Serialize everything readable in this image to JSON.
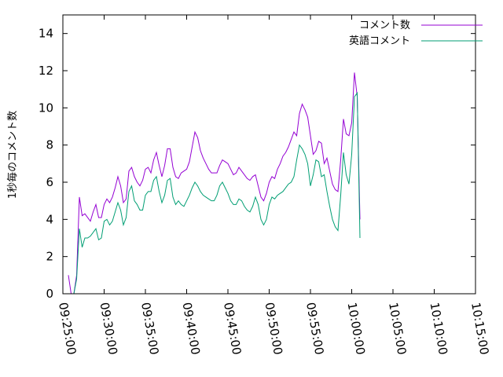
{
  "chart_data": {
    "type": "line",
    "title": "",
    "xlabel": "",
    "ylabel": "1秒毎のコメント数",
    "xlim": [
      "09:25:00",
      "10:15:00"
    ],
    "ylim": [
      0,
      15
    ],
    "grid": false,
    "legend_position": "top-right",
    "x_ticks": [
      "09:25:00",
      "09:30:00",
      "09:35:00",
      "09:40:00",
      "09:45:00",
      "09:50:00",
      "09:55:00",
      "10:00:00",
      "10:05:00",
      "10:10:00",
      "10:15:00"
    ],
    "y_ticks": [
      0,
      2,
      4,
      6,
      8,
      10,
      12,
      14
    ],
    "series": [
      {
        "name": "コメント数",
        "color": "#9400d3",
        "points": [
          [
            "09:25:40",
            1.0
          ],
          [
            "09:26:00",
            0.0
          ],
          [
            "09:26:20",
            0.0
          ],
          [
            "09:26:40",
            1.0
          ],
          [
            "09:27:00",
            5.2
          ],
          [
            "09:27:20",
            4.2
          ],
          [
            "09:27:40",
            4.3
          ],
          [
            "09:28:00",
            4.1
          ],
          [
            "09:28:20",
            3.9
          ],
          [
            "09:28:40",
            4.4
          ],
          [
            "09:29:00",
            4.8
          ],
          [
            "09:29:20",
            4.1
          ],
          [
            "09:29:40",
            4.1
          ],
          [
            "09:30:00",
            4.8
          ],
          [
            "09:30:20",
            5.1
          ],
          [
            "09:30:40",
            4.9
          ],
          [
            "09:31:00",
            5.2
          ],
          [
            "09:31:20",
            5.7
          ],
          [
            "09:31:40",
            6.3
          ],
          [
            "09:32:00",
            5.8
          ],
          [
            "09:32:20",
            4.9
          ],
          [
            "09:32:40",
            5.1
          ],
          [
            "09:33:00",
            6.6
          ],
          [
            "09:33:20",
            6.8
          ],
          [
            "09:33:40",
            6.3
          ],
          [
            "09:34:00",
            6.0
          ],
          [
            "09:34:20",
            5.8
          ],
          [
            "09:34:40",
            6.1
          ],
          [
            "09:35:00",
            6.7
          ],
          [
            "09:35:20",
            6.8
          ],
          [
            "09:35:40",
            6.5
          ],
          [
            "09:36:00",
            7.2
          ],
          [
            "09:36:20",
            7.6
          ],
          [
            "09:36:40",
            6.9
          ],
          [
            "09:37:00",
            6.3
          ],
          [
            "09:37:20",
            6.9
          ],
          [
            "09:37:40",
            7.8
          ],
          [
            "09:38:00",
            7.8
          ],
          [
            "09:38:20",
            6.8
          ],
          [
            "09:38:40",
            6.3
          ],
          [
            "09:39:00",
            6.2
          ],
          [
            "09:39:20",
            6.5
          ],
          [
            "09:39:40",
            6.6
          ],
          [
            "09:40:00",
            6.7
          ],
          [
            "09:40:20",
            7.1
          ],
          [
            "09:40:40",
            7.9
          ],
          [
            "09:41:00",
            8.7
          ],
          [
            "09:41:20",
            8.4
          ],
          [
            "09:41:40",
            7.7
          ],
          [
            "09:42:00",
            7.3
          ],
          [
            "09:42:20",
            7.0
          ],
          [
            "09:42:40",
            6.7
          ],
          [
            "09:43:00",
            6.5
          ],
          [
            "09:43:20",
            6.5
          ],
          [
            "09:43:40",
            6.5
          ],
          [
            "09:44:00",
            6.9
          ],
          [
            "09:44:20",
            7.2
          ],
          [
            "09:44:40",
            7.1
          ],
          [
            "09:45:00",
            7.0
          ],
          [
            "09:45:20",
            6.7
          ],
          [
            "09:45:40",
            6.4
          ],
          [
            "09:46:00",
            6.5
          ],
          [
            "09:46:20",
            6.8
          ],
          [
            "09:46:40",
            6.6
          ],
          [
            "09:47:00",
            6.4
          ],
          [
            "09:47:20",
            6.2
          ],
          [
            "09:47:40",
            6.1
          ],
          [
            "09:48:00",
            6.3
          ],
          [
            "09:48:20",
            6.4
          ],
          [
            "09:48:40",
            5.8
          ],
          [
            "09:49:00",
            5.2
          ],
          [
            "09:49:20",
            5.0
          ],
          [
            "09:49:40",
            5.4
          ],
          [
            "09:50:00",
            6.0
          ],
          [
            "09:50:20",
            6.3
          ],
          [
            "09:50:40",
            6.2
          ],
          [
            "09:51:00",
            6.7
          ],
          [
            "09:51:20",
            7.0
          ],
          [
            "09:51:40",
            7.4
          ],
          [
            "09:52:00",
            7.6
          ],
          [
            "09:52:20",
            7.9
          ],
          [
            "09:52:40",
            8.3
          ],
          [
            "09:53:00",
            8.7
          ],
          [
            "09:53:20",
            8.5
          ],
          [
            "09:53:40",
            9.7
          ],
          [
            "09:54:00",
            10.2
          ],
          [
            "09:54:20",
            9.9
          ],
          [
            "09:54:40",
            9.5
          ],
          [
            "09:55:00",
            8.5
          ],
          [
            "09:55:20",
            7.5
          ],
          [
            "09:55:40",
            7.7
          ],
          [
            "09:56:00",
            8.2
          ],
          [
            "09:56:20",
            8.1
          ],
          [
            "09:56:40",
            7.0
          ],
          [
            "09:57:00",
            7.3
          ],
          [
            "09:57:20",
            6.6
          ],
          [
            "09:57:40",
            5.9
          ],
          [
            "09:58:00",
            5.6
          ],
          [
            "09:58:20",
            5.5
          ],
          [
            "09:58:40",
            7.2
          ],
          [
            "09:59:00",
            9.4
          ],
          [
            "09:59:20",
            8.6
          ],
          [
            "09:59:40",
            8.5
          ],
          [
            "10:00:00",
            9.2
          ],
          [
            "10:00:20",
            11.9
          ],
          [
            "10:00:40",
            10.6
          ],
          [
            "10:01:00",
            4.0
          ]
        ]
      },
      {
        "name": "英語コメント",
        "color": "#009e73",
        "points": [
          [
            "09:25:40",
            0.0
          ],
          [
            "09:26:00",
            0.0
          ],
          [
            "09:26:20",
            0.0
          ],
          [
            "09:26:40",
            0.8
          ],
          [
            "09:27:00",
            3.5
          ],
          [
            "09:27:20",
            2.5
          ],
          [
            "09:27:40",
            3.0
          ],
          [
            "09:28:00",
            3.0
          ],
          [
            "09:28:20",
            3.1
          ],
          [
            "09:28:40",
            3.3
          ],
          [
            "09:29:00",
            3.5
          ],
          [
            "09:29:20",
            2.9
          ],
          [
            "09:29:40",
            3.0
          ],
          [
            "09:30:00",
            3.9
          ],
          [
            "09:30:20",
            4.0
          ],
          [
            "09:30:40",
            3.7
          ],
          [
            "09:31:00",
            3.9
          ],
          [
            "09:31:20",
            4.4
          ],
          [
            "09:31:40",
            4.9
          ],
          [
            "09:32:00",
            4.5
          ],
          [
            "09:32:20",
            3.7
          ],
          [
            "09:32:40",
            4.1
          ],
          [
            "09:33:00",
            5.5
          ],
          [
            "09:33:20",
            5.8
          ],
          [
            "09:33:40",
            5.0
          ],
          [
            "09:34:00",
            4.8
          ],
          [
            "09:34:20",
            4.5
          ],
          [
            "09:34:40",
            4.5
          ],
          [
            "09:35:00",
            5.3
          ],
          [
            "09:35:20",
            5.5
          ],
          [
            "09:35:40",
            5.5
          ],
          [
            "09:36:00",
            6.1
          ],
          [
            "09:36:20",
            6.3
          ],
          [
            "09:36:40",
            5.5
          ],
          [
            "09:37:00",
            4.9
          ],
          [
            "09:37:20",
            5.3
          ],
          [
            "09:37:40",
            6.1
          ],
          [
            "09:38:00",
            6.2
          ],
          [
            "09:38:20",
            5.2
          ],
          [
            "09:38:40",
            4.8
          ],
          [
            "09:39:00",
            5.0
          ],
          [
            "09:39:20",
            4.8
          ],
          [
            "09:39:40",
            4.7
          ],
          [
            "09:40:00",
            5.0
          ],
          [
            "09:40:20",
            5.3
          ],
          [
            "09:40:40",
            5.7
          ],
          [
            "09:41:00",
            6.0
          ],
          [
            "09:41:20",
            5.8
          ],
          [
            "09:41:40",
            5.5
          ],
          [
            "09:42:00",
            5.3
          ],
          [
            "09:42:20",
            5.2
          ],
          [
            "09:42:40",
            5.1
          ],
          [
            "09:43:00",
            5.0
          ],
          [
            "09:43:20",
            5.0
          ],
          [
            "09:43:40",
            5.3
          ],
          [
            "09:44:00",
            5.8
          ],
          [
            "09:44:20",
            6.0
          ],
          [
            "09:44:40",
            5.7
          ],
          [
            "09:45:00",
            5.4
          ],
          [
            "09:45:20",
            5.0
          ],
          [
            "09:45:40",
            4.8
          ],
          [
            "09:46:00",
            4.8
          ],
          [
            "09:46:20",
            5.1
          ],
          [
            "09:46:40",
            5.0
          ],
          [
            "09:47:00",
            4.7
          ],
          [
            "09:47:20",
            4.5
          ],
          [
            "09:47:40",
            4.4
          ],
          [
            "09:48:00",
            4.7
          ],
          [
            "09:48:20",
            5.2
          ],
          [
            "09:48:40",
            4.8
          ],
          [
            "09:49:00",
            4.0
          ],
          [
            "09:49:20",
            3.7
          ],
          [
            "09:49:40",
            4.0
          ],
          [
            "09:50:00",
            4.8
          ],
          [
            "09:50:20",
            5.2
          ],
          [
            "09:50:40",
            5.1
          ],
          [
            "09:51:00",
            5.3
          ],
          [
            "09:51:20",
            5.4
          ],
          [
            "09:51:40",
            5.5
          ],
          [
            "09:52:00",
            5.7
          ],
          [
            "09:52:20",
            5.9
          ],
          [
            "09:52:40",
            6.0
          ],
          [
            "09:53:00",
            6.3
          ],
          [
            "09:53:20",
            7.2
          ],
          [
            "09:53:40",
            8.0
          ],
          [
            "09:54:00",
            7.8
          ],
          [
            "09:54:20",
            7.5
          ],
          [
            "09:54:40",
            7.0
          ],
          [
            "09:55:00",
            5.8
          ],
          [
            "09:55:20",
            6.4
          ],
          [
            "09:55:40",
            7.2
          ],
          [
            "09:56:00",
            7.1
          ],
          [
            "09:56:20",
            6.3
          ],
          [
            "09:56:40",
            6.4
          ],
          [
            "09:57:00",
            5.5
          ],
          [
            "09:57:20",
            4.7
          ],
          [
            "09:57:40",
            4.0
          ],
          [
            "09:58:00",
            3.6
          ],
          [
            "09:58:20",
            3.4
          ],
          [
            "09:58:40",
            5.3
          ],
          [
            "09:59:00",
            7.6
          ],
          [
            "09:59:20",
            6.4
          ],
          [
            "09:59:40",
            5.9
          ],
          [
            "10:00:00",
            7.5
          ],
          [
            "10:00:20",
            10.6
          ],
          [
            "10:00:40",
            10.8
          ],
          [
            "10:01:00",
            3.0
          ]
        ]
      }
    ]
  }
}
